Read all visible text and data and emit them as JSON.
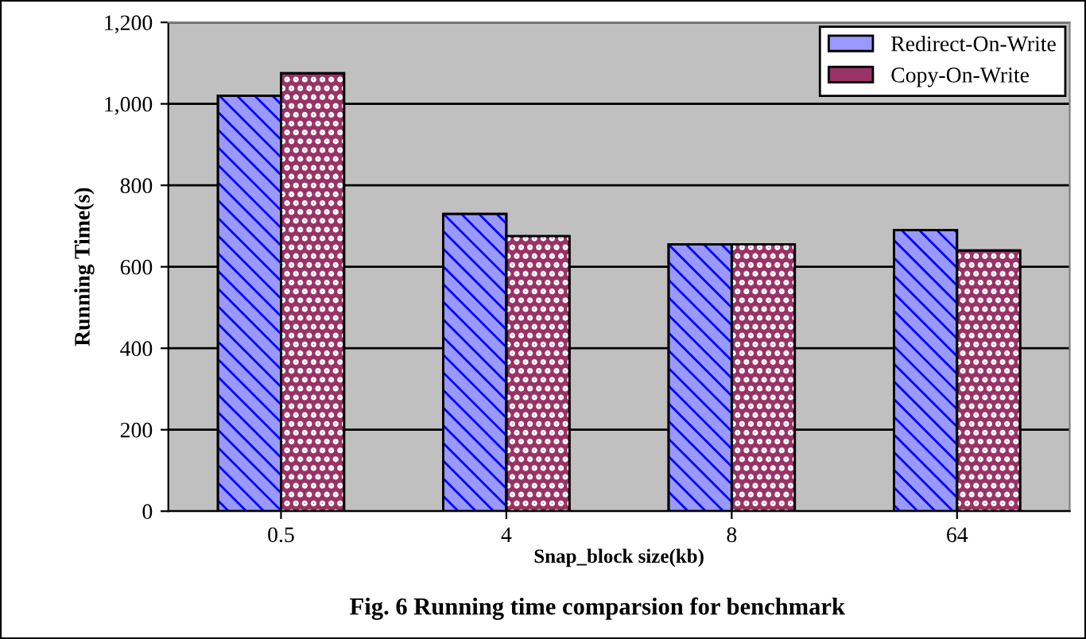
{
  "chart_data": {
    "type": "bar",
    "xlabel": "Snap_block size(kb)",
    "ylabel": "Running Time(s)",
    "categories": [
      "0.5",
      "4",
      "8",
      "64"
    ],
    "series": [
      {
        "name": "Redirect-On-Write",
        "color": "#9999ff",
        "values": [
          1020,
          730,
          655,
          690
        ]
      },
      {
        "name": "Copy-On-Write",
        "color": "#993366",
        "values": [
          1075,
          675,
          655,
          640
        ]
      }
    ],
    "ylim": [
      0,
      1200
    ],
    "yticks": [
      0,
      {
        "value": 200,
        "label": "200"
      },
      {
        "value": 400,
        "label": "400"
      },
      {
        "value": 600,
        "label": "600"
      },
      {
        "value": 800,
        "label": "800"
      },
      {
        "value": 1000,
        "label": "1,000"
      },
      {
        "value": 1200,
        "label": "1,200"
      }
    ],
    "grid": "y",
    "legend": "top right",
    "annotations": [
      "Fig. 6 Running time comparsion for benchmark"
    ]
  }
}
